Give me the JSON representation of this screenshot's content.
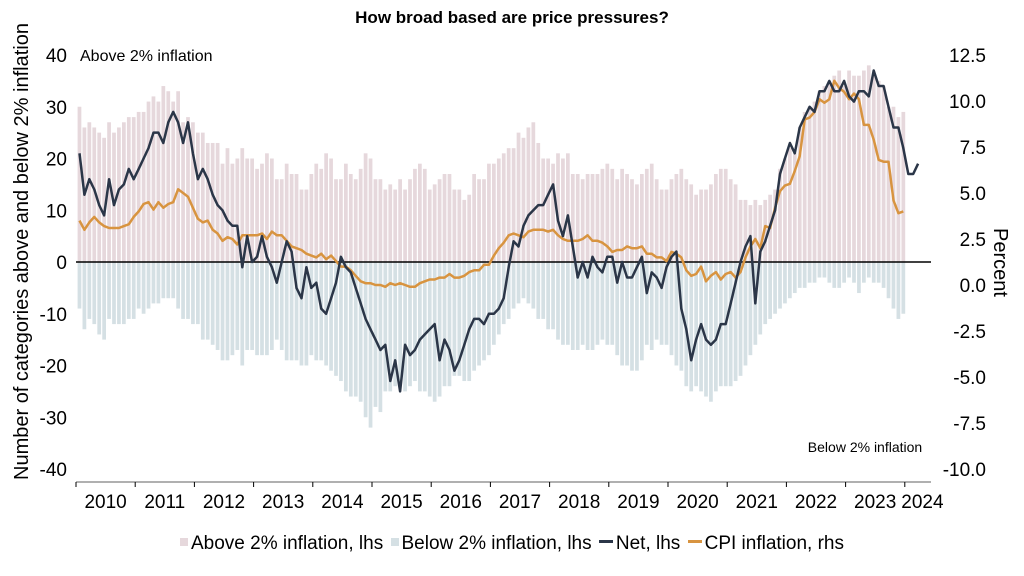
{
  "chart_data": {
    "type": "bar+line",
    "title": "How broad based are price pressures?",
    "ylabel_left": "Number of categories above and below 2% inflation",
    "ylabel_right": "Percent",
    "ylim_left": [
      -40,
      40
    ],
    "ylim_right": [
      -10,
      12.5
    ],
    "yticks_left": [
      "40",
      "30",
      "20",
      "10",
      "0",
      "-10",
      "-20",
      "-30",
      "-40"
    ],
    "yticks_right": [
      "12.5",
      "10.0",
      "7.5",
      "5.0",
      "2.5",
      "0.0",
      "-2.5",
      "-5.0",
      "-7.5",
      "-10.0"
    ],
    "xticks": [
      "2010",
      "2011",
      "2012",
      "2013",
      "2014",
      "2015",
      "2016",
      "2017",
      "2018",
      "2019",
      "2020",
      "2021",
      "2022",
      "2023",
      "2024"
    ],
    "x_start": "2010-01",
    "frequency": "monthly",
    "annotations": {
      "top": "Above 2% inflation",
      "bottom": "Below 2% inflation"
    },
    "legend": [
      "Above 2% inflation, lhs",
      "Below 2% inflation, lhs",
      "Net, lhs",
      "CPI inflation, rhs"
    ],
    "colors": {
      "above": "#e6d8dc",
      "below": "#d5e0e4",
      "net": "#2b3648",
      "cpi": "#d89440",
      "zero": "#000000"
    },
    "series": [
      {
        "name": "Above 2% inflation, lhs",
        "axis": "left",
        "kind": "bar",
        "values": [
          30,
          26,
          27,
          26,
          25,
          24,
          27,
          25,
          26,
          27,
          28,
          28,
          29,
          29,
          31,
          32,
          31,
          34,
          33,
          31,
          33,
          27,
          28,
          27,
          25,
          25,
          23,
          23,
          23,
          19,
          22,
          19,
          20,
          22,
          20,
          20,
          18,
          19,
          21,
          20,
          16,
          16,
          19,
          17,
          17,
          14,
          14,
          17,
          19,
          18,
          21,
          20,
          16,
          16,
          19,
          17,
          16,
          18,
          21,
          20,
          16,
          16,
          14,
          15,
          14,
          16,
          14,
          16,
          18,
          19,
          18,
          14,
          15,
          16,
          17,
          17,
          14,
          14,
          12,
          13,
          17,
          16,
          16,
          19,
          19,
          20,
          21,
          22,
          22,
          25,
          24,
          26,
          27,
          23,
          20,
          20,
          19,
          21,
          20,
          21,
          17,
          17,
          16,
          17,
          17,
          17,
          18,
          19,
          18,
          16,
          18,
          17,
          16,
          15,
          17,
          18,
          19,
          16,
          14,
          14,
          16,
          17,
          18,
          16,
          15,
          13,
          14,
          14,
          15,
          17,
          18,
          18,
          16,
          15,
          12,
          12,
          11,
          12,
          11,
          12,
          13,
          14,
          18,
          20,
          22,
          21,
          26,
          29,
          30,
          31,
          33,
          34,
          35,
          36,
          37,
          34,
          37,
          36,
          36,
          37,
          38,
          36,
          35,
          34,
          30,
          30,
          28,
          29
        ]
      },
      {
        "name": "Below 2% inflation, lhs",
        "axis": "left",
        "kind": "bar",
        "values": [
          -9,
          -13,
          -11,
          -12,
          -14,
          -15,
          -11,
          -12,
          -12,
          -12,
          -11,
          -11,
          -9,
          -10,
          -9,
          -8,
          -8,
          -7,
          -7,
          -7,
          -9,
          -11,
          -11,
          -12,
          -12,
          -15,
          -15,
          -16,
          -17,
          -19,
          -19,
          -18,
          -17,
          -20,
          -17,
          -17,
          -18,
          -18,
          -18,
          -17,
          -15,
          -17,
          -19,
          -19,
          -19,
          -20,
          -20,
          -18,
          -19,
          -19,
          -20,
          -21,
          -22,
          -23,
          -25,
          -26,
          -26,
          -27,
          -30,
          -32,
          -28,
          -29,
          -25,
          -25,
          -24,
          -23,
          -25,
          -24,
          -23,
          -25,
          -25,
          -26,
          -27,
          -26,
          -24,
          -24,
          -22,
          -22,
          -23,
          -23,
          -21,
          -20,
          -19,
          -18,
          -16,
          -14,
          -12,
          -11,
          -9,
          -8,
          -7,
          -8,
          -9,
          -11,
          -11,
          -13,
          -13,
          -15,
          -16,
          -16,
          -17,
          -17,
          -16,
          -17,
          -17,
          -16,
          -15,
          -16,
          -16,
          -18,
          -20,
          -20,
          -21,
          -21,
          -19,
          -16,
          -17,
          -15,
          -16,
          -16,
          -18,
          -20,
          -21,
          -24,
          -25,
          -24,
          -25,
          -26,
          -27,
          -25,
          -24,
          -24,
          -24,
          -23,
          -22,
          -20,
          -18,
          -16,
          -14,
          -12,
          -11,
          -10,
          -9,
          -8,
          -7,
          -6,
          -5,
          -5,
          -4,
          -4,
          -3,
          -3,
          -4,
          -5,
          -5,
          -4,
          -3,
          -4,
          -6,
          -4,
          -3,
          -4,
          -4,
          -5,
          -7,
          -9,
          -11,
          -10
        ]
      },
      {
        "name": "Net, lhs",
        "axis": "left",
        "kind": "line",
        "values": [
          21,
          13,
          16,
          14,
          11,
          9,
          16,
          11,
          14,
          15,
          18,
          16,
          18,
          20,
          22,
          25,
          25,
          23,
          27,
          29,
          27,
          23,
          27,
          21,
          16,
          18,
          16,
          13,
          11,
          10,
          8,
          7,
          7,
          -1,
          5,
          0,
          1,
          5,
          1,
          -1,
          -4,
          0,
          4,
          2,
          -5,
          -7,
          -1,
          -5,
          -4,
          -9,
          -10,
          -7,
          -4,
          1,
          -1,
          -2,
          -5,
          -8,
          -11,
          -13,
          -15,
          -17,
          -16,
          -23,
          -19,
          -25,
          -16,
          -18,
          -17,
          -15,
          -14,
          -13,
          -12,
          -19,
          -15,
          -17,
          -21,
          -19,
          -16,
          -13,
          -11,
          -11,
          -12,
          -10,
          -10,
          -9,
          -7,
          -1,
          4,
          3,
          7,
          9,
          10,
          11,
          11,
          13,
          15,
          8,
          5,
          9,
          3,
          -3,
          0,
          -3,
          1,
          -1,
          -2,
          1,
          1,
          -4,
          0,
          -3,
          -3,
          -1,
          1,
          -6,
          -2,
          -3,
          -5,
          -1,
          1,
          2,
          -9,
          -13,
          -19,
          -15,
          -12,
          -15,
          -16,
          -15,
          -12,
          -12,
          -8,
          -4,
          0,
          3,
          5,
          -8,
          2,
          4,
          7,
          10,
          17,
          20,
          23,
          21,
          26,
          28,
          30,
          29,
          33,
          33,
          35,
          33,
          33,
          35,
          32,
          31,
          33,
          33,
          32,
          37,
          34,
          34,
          30,
          26,
          26,
          22,
          17,
          17,
          19
        ]
      },
      {
        "name": "CPI inflation, rhs",
        "axis": "right",
        "kind": "line",
        "values": [
          3.5,
          3.0,
          3.4,
          3.7,
          3.4,
          3.2,
          3.1,
          3.1,
          3.1,
          3.2,
          3.3,
          3.7,
          4.0,
          4.4,
          4.5,
          4.1,
          4.5,
          4.2,
          4.4,
          4.5,
          5.2,
          5.0,
          4.8,
          4.2,
          3.6,
          3.4,
          3.5,
          3.0,
          2.8,
          2.4,
          2.6,
          2.5,
          2.2,
          2.7,
          2.7,
          2.7,
          2.7,
          2.8,
          2.5,
          2.9,
          2.7,
          2.7,
          2.4,
          2.1,
          2.0,
          1.9,
          1.7,
          1.6,
          1.5,
          1.7,
          1.4,
          1.6,
          1.3,
          1.0,
          1.0,
          0.8,
          0.5,
          0.2,
          0.1,
          0.1,
          0.0,
          0.0,
          -0.1,
          0.1,
          0.0,
          0.1,
          0.0,
          -0.1,
          -0.1,
          0.1,
          0.2,
          0.3,
          0.3,
          0.4,
          0.4,
          0.6,
          0.4,
          0.4,
          0.5,
          0.7,
          0.8,
          0.8,
          1.1,
          1.1,
          1.6,
          2.0,
          2.3,
          2.7,
          2.8,
          2.7,
          2.6,
          2.9,
          3.0,
          3.0,
          3.0,
          2.9,
          3.0,
          2.7,
          2.5,
          2.4,
          2.4,
          2.4,
          2.5,
          2.7,
          2.4,
          2.4,
          2.3,
          2.1,
          1.8,
          1.9,
          1.9,
          2.1,
          2.0,
          2.0,
          2.1,
          1.7,
          1.7,
          1.5,
          1.5,
          1.3,
          1.8,
          1.7,
          1.5,
          0.8,
          0.5,
          0.6,
          1.0,
          0.2,
          0.5,
          0.7,
          0.3,
          0.6,
          0.7,
          0.4,
          0.7,
          1.5,
          2.1,
          2.5,
          2.0,
          3.2,
          3.1,
          4.2,
          5.1,
          5.4,
          5.5,
          6.2,
          7.0,
          9.0,
          9.1,
          9.4,
          10.1,
          9.9,
          10.1,
          11.1,
          10.7,
          10.5,
          10.1,
          10.4,
          10.1,
          8.7,
          8.7,
          7.9,
          6.8,
          6.7,
          6.7,
          4.6,
          3.9,
          4.0
        ]
      }
    ]
  }
}
